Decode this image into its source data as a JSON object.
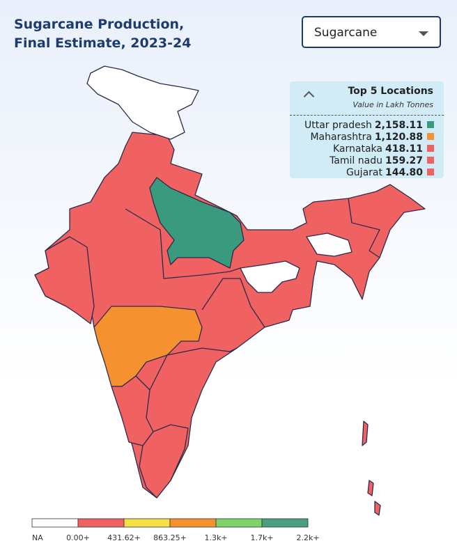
{
  "title_lines": [
    "Sugarcane Production,",
    "Final Estimate, 2023-24"
  ],
  "dropdown": {
    "selected": "Sugarcane"
  },
  "top_locations": {
    "title": "Top 5 Locations",
    "subtitle": "Value in Lakh Tonnes",
    "items": [
      {
        "name": "Uttar pradesh",
        "value": 2158.11,
        "label": "2,158.11",
        "color": "#3a9a7e"
      },
      {
        "name": "Maharashtra",
        "value": 1120.88,
        "label": "1,120.88",
        "color": "#f5922f"
      },
      {
        "name": "Karnataka",
        "value": 418.11,
        "label": "418.11",
        "color": "#f06262"
      },
      {
        "name": "Tamil nadu",
        "value": 159.27,
        "label": "159.27",
        "color": "#f06262"
      },
      {
        "name": "Gujarat",
        "value": 144.8,
        "label": "144.80",
        "color": "#f06262"
      }
    ]
  },
  "legend": {
    "colors": [
      "#ffffff",
      "#f06262",
      "#f7e045",
      "#f5922f",
      "#7fd36b",
      "#4a9e82"
    ],
    "labels": [
      "NA",
      "0.00+",
      "431.62+",
      "863.25+",
      "1.3k+",
      "1.7k+",
      "2.2k+"
    ]
  }
}
